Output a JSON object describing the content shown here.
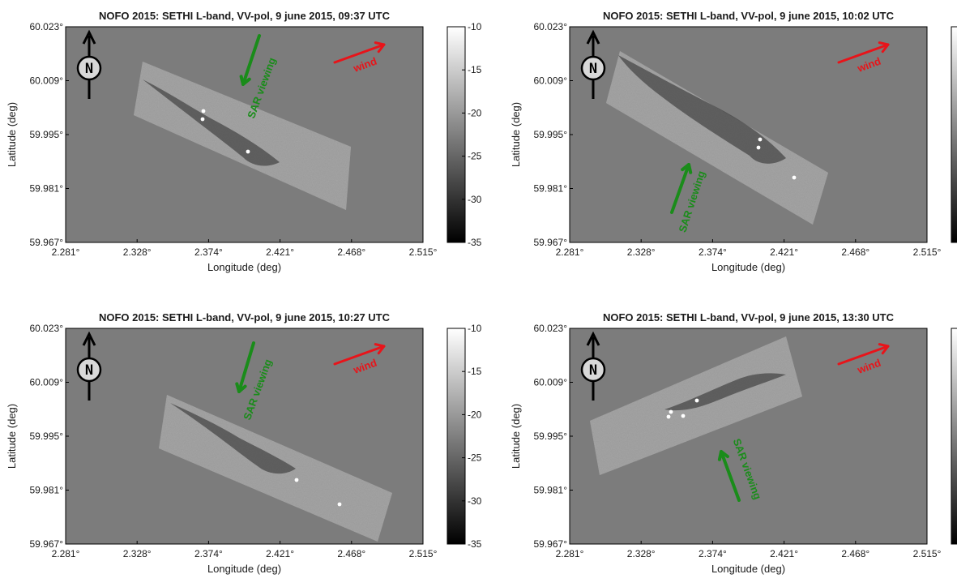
{
  "colors": {
    "sea_background": "#7c7c7c",
    "swath_fill": "#a8a8a8",
    "slick_dark": "#3a3a3a",
    "arrow_sar": "#1a8c1a",
    "arrow_wind": "#e8141a",
    "north_arrow": "#000000",
    "frame": "#000000",
    "text": "#1a1a1a"
  },
  "icons": {
    "north_arrow": "north-arrow-icon",
    "sar_arrow": "sar-viewing-arrow-icon",
    "wind_arrow": "wind-arrow-icon"
  },
  "common": {
    "xlabel": "Longitude (deg)",
    "ylabel": "Latitude (deg)",
    "x_ticks": [
      "2.281°",
      "2.328°",
      "2.374°",
      "2.421°",
      "2.468°",
      "2.515°"
    ],
    "y_ticks": [
      "60.023°",
      "60.009°",
      "59.995°",
      "59.981°",
      "59.967°"
    ],
    "colorbar_ticks": [
      "-10",
      "-15",
      "-20",
      "-25",
      "-30",
      "-35"
    ],
    "north_label": "N",
    "sar_label": "SAR viewing",
    "wind_label": "wind"
  },
  "chart_data": [
    {
      "type": "heatmap",
      "title": "NOFO 2015: SETHI L-band, VV-pol, 9 june 2015, 09:37 UTC",
      "xlabel": "Longitude (deg)",
      "ylabel": "Latitude (deg)",
      "xlim": [
        2.281,
        2.515
      ],
      "ylim": [
        59.967,
        60.023
      ],
      "colorbar_range": [
        -35,
        -10
      ],
      "colormap": "gray",
      "sar_viewing_direction": "south-southwest",
      "wind_direction": "east-northeast"
    },
    {
      "type": "heatmap",
      "title": "NOFO 2015: SETHI L-band, VV-pol, 9 june 2015, 10:02 UTC",
      "xlabel": "Longitude (deg)",
      "ylabel": "Latitude (deg)",
      "xlim": [
        2.281,
        2.515
      ],
      "ylim": [
        59.967,
        60.023
      ],
      "colorbar_range": [
        -35,
        -10
      ],
      "colormap": "gray",
      "sar_viewing_direction": "north-northeast",
      "wind_direction": "east-northeast"
    },
    {
      "type": "heatmap",
      "title": "NOFO 2015: SETHI L-band, VV-pol, 9 june 2015, 10:27 UTC",
      "xlabel": "Longitude (deg)",
      "ylabel": "Latitude (deg)",
      "xlim": [
        2.281,
        2.515
      ],
      "ylim": [
        59.967,
        60.023
      ],
      "colorbar_range": [
        -35,
        -10
      ],
      "colormap": "gray",
      "sar_viewing_direction": "south-southwest",
      "wind_direction": "east-northeast"
    },
    {
      "type": "heatmap",
      "title": "NOFO 2015: SETHI L-band, VV-pol, 9 june 2015, 13:30 UTC",
      "xlabel": "Longitude (deg)",
      "ylabel": "Latitude (deg)",
      "xlim": [
        2.281,
        2.515
      ],
      "ylim": [
        59.967,
        60.023
      ],
      "colorbar_range": [
        -35,
        -10
      ],
      "colormap": "gray",
      "sar_viewing_direction": "north-northwest",
      "wind_direction": "east-northeast"
    }
  ]
}
